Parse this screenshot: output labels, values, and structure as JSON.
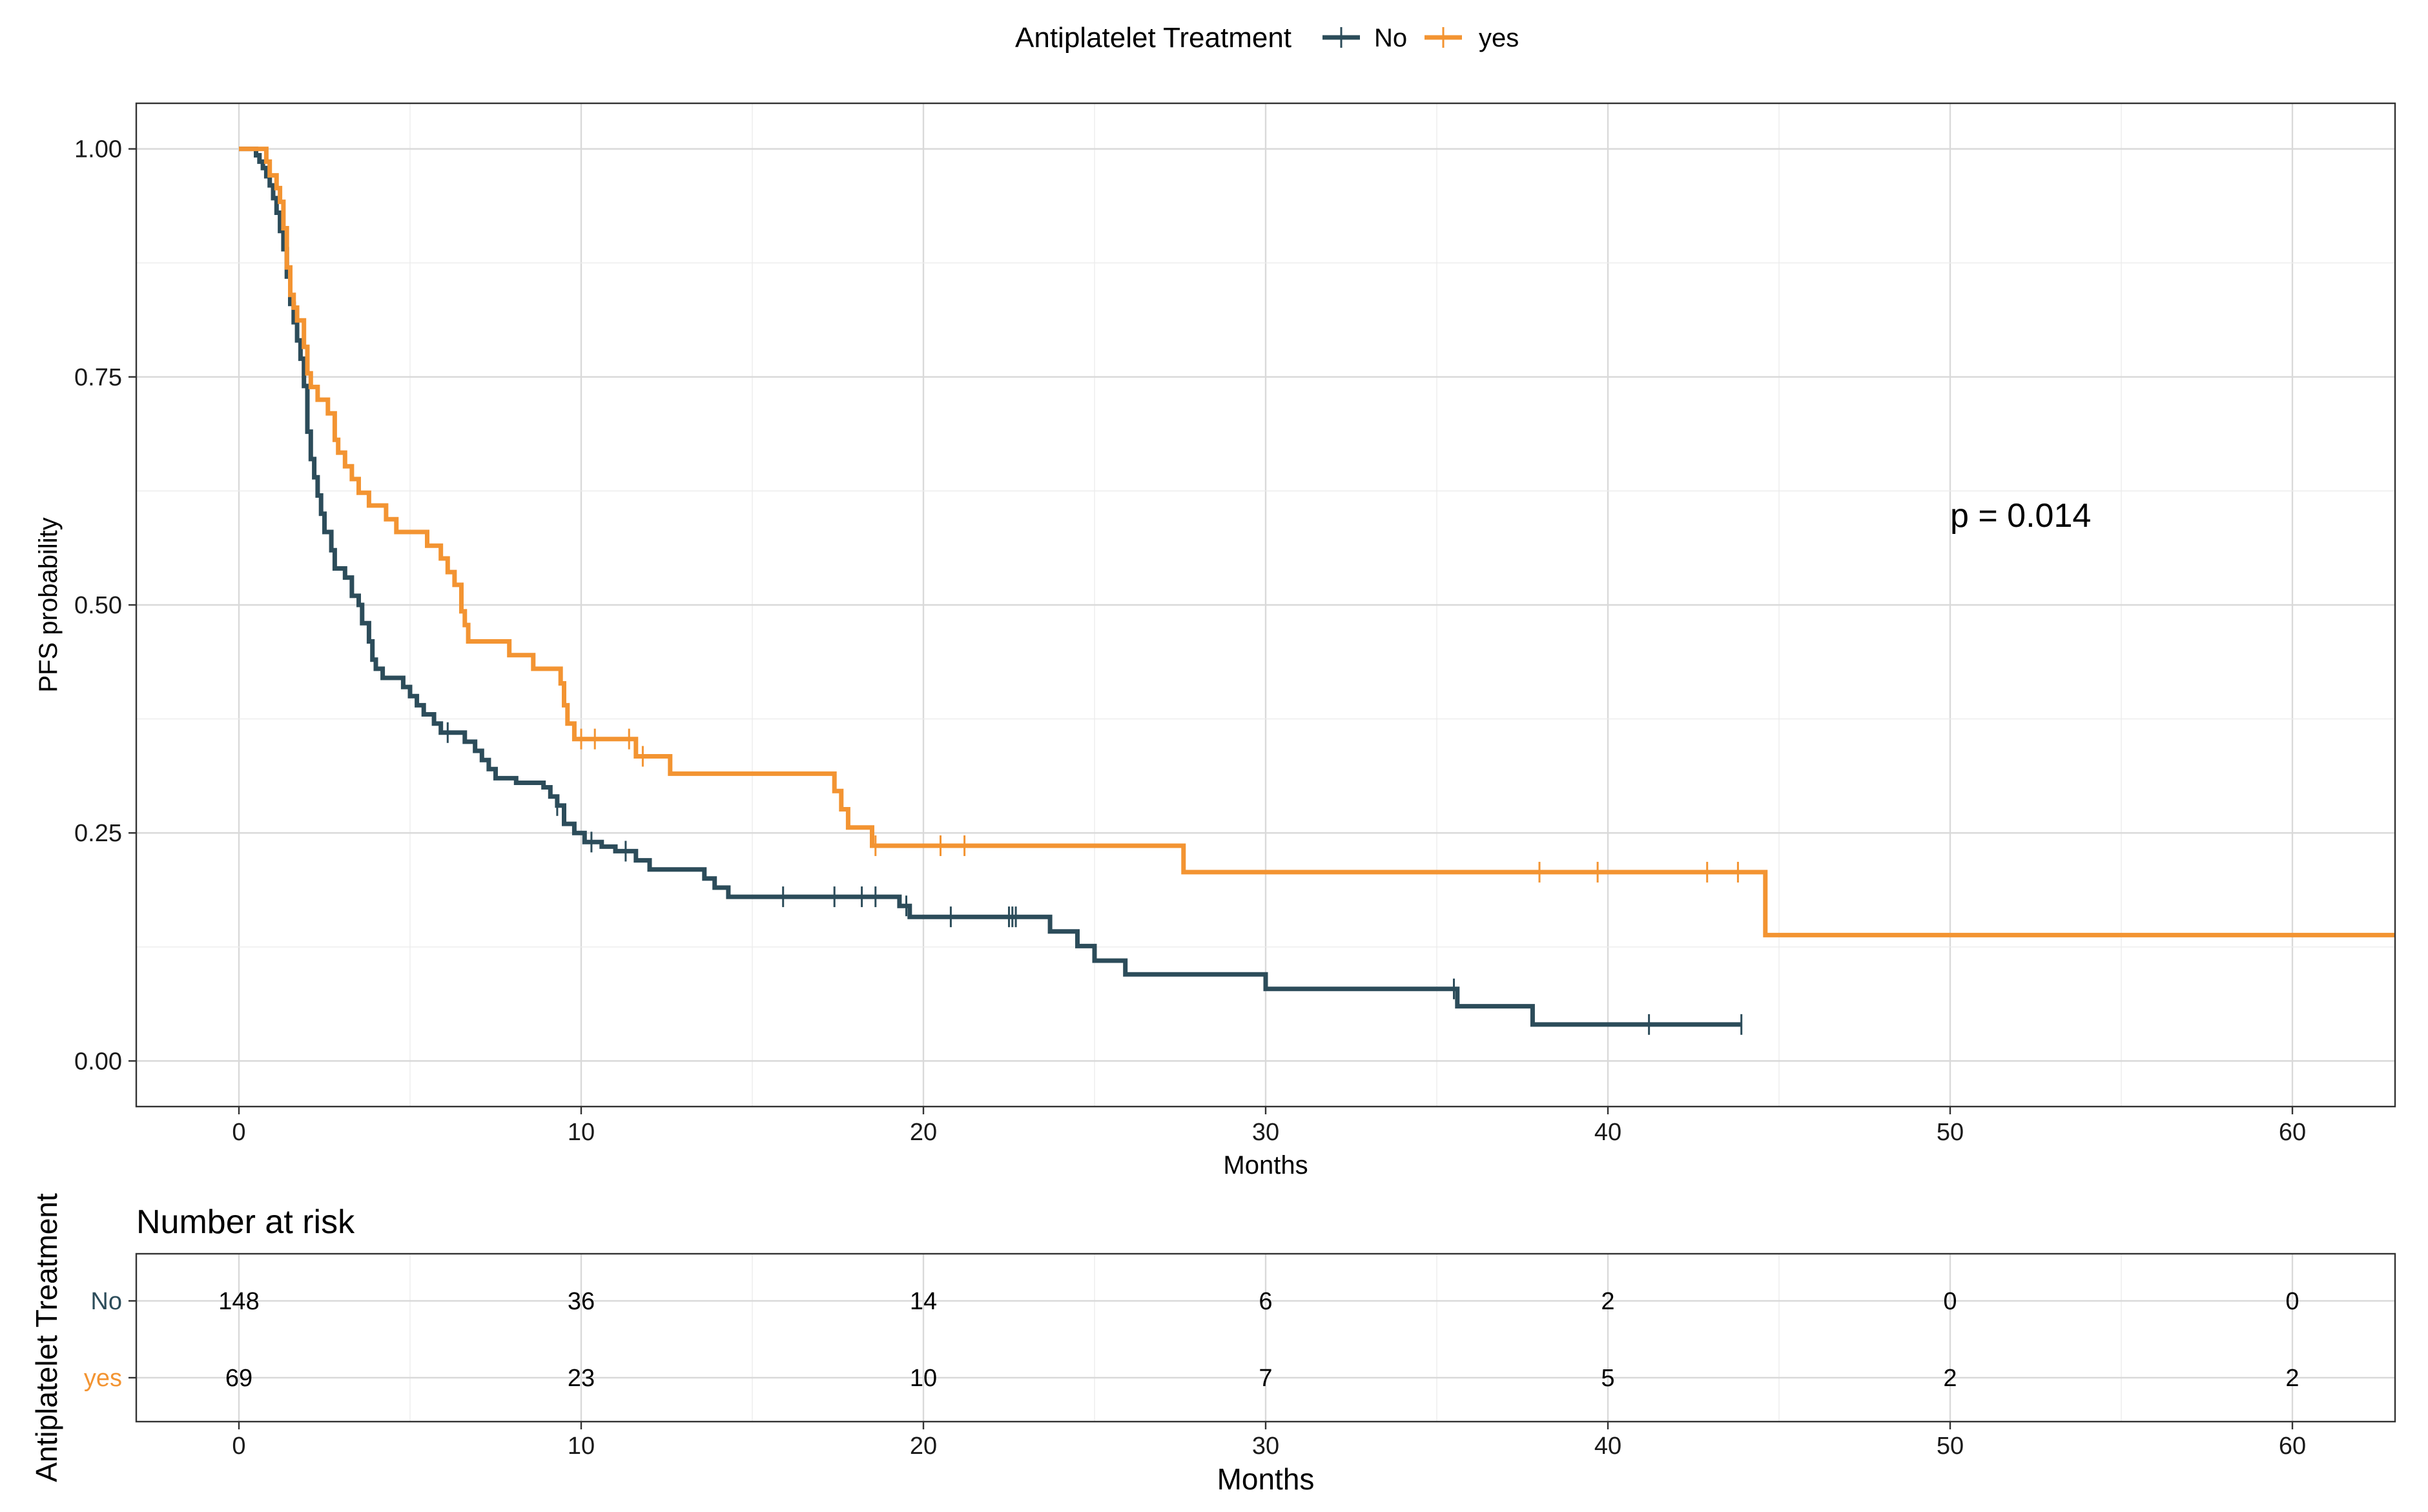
{
  "chart_data": {
    "type": "line",
    "subtype": "kaplan-meier step",
    "title": "",
    "xlabel": "Months",
    "ylabel": "PFS probability",
    "xlim": [
      -3,
      63
    ],
    "ylim": [
      -0.05,
      1.05
    ],
    "x_ticks": [
      0,
      10,
      20,
      30,
      40,
      50,
      60
    ],
    "x_tick_labels": [
      "0",
      "10",
      "20",
      "30",
      "40",
      "50",
      "60"
    ],
    "y_ticks": [
      0,
      0.25,
      0.5,
      0.75,
      1.0
    ],
    "y_tick_labels": [
      "0.00",
      "0.25",
      "0.50",
      "0.75",
      "1.00"
    ],
    "grid": true,
    "legend": {
      "title": "Antiplatelet Treatment",
      "position": "top",
      "entries": [
        "No",
        "yes"
      ]
    },
    "annotation": "p = 0.014",
    "series": [
      {
        "name": "No",
        "color": "#2c4c5a",
        "steps": [
          [
            0,
            1.0
          ],
          [
            0.5,
            0.993
          ],
          [
            0.6,
            0.986
          ],
          [
            0.7,
            0.979
          ],
          [
            0.8,
            0.97
          ],
          [
            0.9,
            0.96
          ],
          [
            1.0,
            0.946
          ],
          [
            1.1,
            0.93
          ],
          [
            1.2,
            0.91
          ],
          [
            1.3,
            0.89
          ],
          [
            1.4,
            0.86
          ],
          [
            1.5,
            0.83
          ],
          [
            1.6,
            0.81
          ],
          [
            1.7,
            0.79
          ],
          [
            1.8,
            0.77
          ],
          [
            1.9,
            0.74
          ],
          [
            2.0,
            0.69
          ],
          [
            2.1,
            0.66
          ],
          [
            2.2,
            0.64
          ],
          [
            2.3,
            0.62
          ],
          [
            2.4,
            0.6
          ],
          [
            2.5,
            0.58
          ],
          [
            2.7,
            0.56
          ],
          [
            2.8,
            0.54
          ],
          [
            3.1,
            0.53
          ],
          [
            3.3,
            0.51
          ],
          [
            3.5,
            0.5
          ],
          [
            3.6,
            0.48
          ],
          [
            3.8,
            0.46
          ],
          [
            3.9,
            0.44
          ],
          [
            4.0,
            0.43
          ],
          [
            4.2,
            0.42
          ],
          [
            4.8,
            0.41
          ],
          [
            5.0,
            0.4
          ],
          [
            5.2,
            0.39
          ],
          [
            5.4,
            0.38
          ],
          [
            5.7,
            0.37
          ],
          [
            5.9,
            0.36
          ],
          [
            6.6,
            0.35
          ],
          [
            6.9,
            0.34
          ],
          [
            7.1,
            0.33
          ],
          [
            7.3,
            0.32
          ],
          [
            7.5,
            0.31
          ],
          [
            8.1,
            0.305
          ],
          [
            8.9,
            0.3
          ],
          [
            9.1,
            0.29
          ],
          [
            9.3,
            0.28
          ],
          [
            9.5,
            0.26
          ],
          [
            9.8,
            0.25
          ],
          [
            10.1,
            0.24
          ],
          [
            10.6,
            0.235
          ],
          [
            11.0,
            0.23
          ],
          [
            11.6,
            0.22
          ],
          [
            12.0,
            0.21
          ],
          [
            13.6,
            0.2
          ],
          [
            13.9,
            0.19
          ],
          [
            14.3,
            0.18
          ],
          [
            19.3,
            0.17
          ],
          [
            19.6,
            0.158
          ],
          [
            23.7,
            0.142
          ],
          [
            24.5,
            0.126
          ],
          [
            25.0,
            0.11
          ],
          [
            25.9,
            0.095
          ],
          [
            30.0,
            0.079
          ],
          [
            35.6,
            0.06
          ],
          [
            37.8,
            0.04
          ],
          [
            43.9,
            0.04
          ]
        ],
        "censor_times": [
          6.1,
          9.3,
          10.3,
          11.3,
          15.9,
          17.4,
          18.2,
          18.6,
          19.5,
          20.8,
          22.5,
          22.6,
          22.7,
          35.5,
          41.2,
          43.9
        ]
      },
      {
        "name": "yes",
        "color": "#f39432",
        "steps": [
          [
            0,
            1.0
          ],
          [
            0.8,
            0.986
          ],
          [
            0.9,
            0.971
          ],
          [
            1.1,
            0.957
          ],
          [
            1.2,
            0.942
          ],
          [
            1.3,
            0.913
          ],
          [
            1.4,
            0.87
          ],
          [
            1.5,
            0.84
          ],
          [
            1.6,
            0.826
          ],
          [
            1.7,
            0.812
          ],
          [
            1.9,
            0.783
          ],
          [
            2.0,
            0.754
          ],
          [
            2.1,
            0.739
          ],
          [
            2.3,
            0.725
          ],
          [
            2.6,
            0.71
          ],
          [
            2.8,
            0.681
          ],
          [
            2.9,
            0.667
          ],
          [
            3.1,
            0.652
          ],
          [
            3.3,
            0.638
          ],
          [
            3.5,
            0.623
          ],
          [
            3.8,
            0.609
          ],
          [
            4.3,
            0.594
          ],
          [
            4.6,
            0.58
          ],
          [
            5.5,
            0.565
          ],
          [
            5.9,
            0.551
          ],
          [
            6.1,
            0.536
          ],
          [
            6.3,
            0.522
          ],
          [
            6.5,
            0.493
          ],
          [
            6.6,
            0.478
          ],
          [
            6.7,
            0.46
          ],
          [
            7.9,
            0.445
          ],
          [
            8.6,
            0.43
          ],
          [
            9.4,
            0.414
          ],
          [
            9.5,
            0.39
          ],
          [
            9.6,
            0.37
          ],
          [
            9.8,
            0.353
          ],
          [
            11.6,
            0.334
          ],
          [
            12.6,
            0.315
          ],
          [
            17.4,
            0.296
          ],
          [
            17.6,
            0.276
          ],
          [
            17.8,
            0.256
          ],
          [
            18.5,
            0.236
          ],
          [
            27.6,
            0.207
          ],
          [
            44.6,
            0.138
          ],
          [
            63,
            0.138
          ]
        ],
        "censor_times": [
          10.0,
          10.4,
          11.4,
          11.8,
          18.6,
          20.5,
          21.2,
          38.0,
          39.7,
          42.9,
          43.8
        ]
      }
    ],
    "risk_table": {
      "title": "Number at risk",
      "ylabel": "Antiplatelet Treatment",
      "xlabel": "Months",
      "time_points": [
        0,
        10,
        20,
        30,
        40,
        50,
        60
      ],
      "rows": [
        {
          "group": "No",
          "color": "#2c4c5a",
          "values": [
            148,
            36,
            14,
            6,
            2,
            0,
            0
          ]
        },
        {
          "group": "yes",
          "color": "#f39432",
          "values": [
            69,
            23,
            10,
            7,
            5,
            2,
            2
          ]
        }
      ]
    }
  }
}
